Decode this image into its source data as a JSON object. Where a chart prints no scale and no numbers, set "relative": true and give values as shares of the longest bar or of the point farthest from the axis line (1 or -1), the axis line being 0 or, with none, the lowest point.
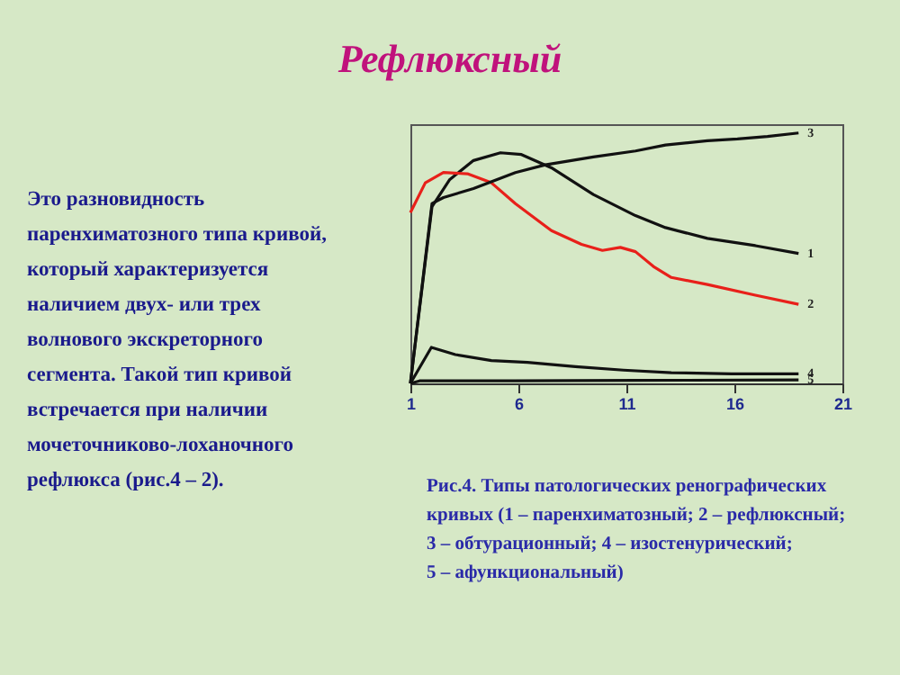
{
  "chart_data": {
    "type": "line",
    "title": "Рефлюксный",
    "relative": true,
    "xlim": [
      1,
      21
    ],
    "xticks": [
      1,
      6,
      11,
      16,
      21
    ],
    "grid": false,
    "legend": false,
    "marker": "none",
    "line_style": "solid",
    "series": [
      {
        "name": "1",
        "color": "#111111",
        "x": [
          1,
          2.0,
          2.81,
          3.92,
          5.17,
          6.14,
          7.53,
          9.47,
          11.42,
          12.81,
          14.75,
          16.97,
          18.97
        ],
        "values": [
          0,
          0.706,
          0.813,
          0.89,
          0.921,
          0.914,
          0.861,
          0.754,
          0.67,
          0.622,
          0.579,
          0.55,
          0.519
        ]
      },
      {
        "name": "2",
        "color": "#e8201a",
        "x": [
          1,
          1.69,
          2.53,
          3.64,
          4.75,
          5.86,
          7.53,
          8.92,
          9.89,
          10.72,
          11.42,
          12.25,
          13.08,
          14.75,
          16.97,
          18.97
        ],
        "values": [
          0.682,
          0.801,
          0.842,
          0.837,
          0.801,
          0.718,
          0.61,
          0.555,
          0.531,
          0.543,
          0.526,
          0.467,
          0.423,
          0.395,
          0.352,
          0.316
        ]
      },
      {
        "name": "3",
        "color": "#111111",
        "x": [
          1,
          2.0,
          2.53,
          3.92,
          5.86,
          7.25,
          9.47,
          11.42,
          12.81,
          14.75,
          16.14,
          17.53,
          18.97
        ],
        "values": [
          0,
          0.718,
          0.742,
          0.778,
          0.842,
          0.873,
          0.904,
          0.928,
          0.952,
          0.969,
          0.976,
          0.986,
          1
        ]
      },
      {
        "name": "4",
        "color": "#111111",
        "x": [
          1,
          1.97,
          3.08,
          4.75,
          6.42,
          8.64,
          10.86,
          13.08,
          15.86,
          18.97
        ],
        "values": [
          0,
          0.144,
          0.115,
          0.091,
          0.084,
          0.067,
          0.053,
          0.043,
          0.038,
          0.038
        ]
      },
      {
        "name": "5",
        "color": "#111111",
        "x": [
          1,
          1.42,
          5.86,
          11.42,
          18.97
        ],
        "values": [
          0,
          0.01,
          0.01,
          0.012,
          0.014
        ]
      }
    ],
    "annotations": [
      "Это разновидность паренхиматозного типа кривой, который характеризуется наличием двух- или трех волнового экскреторного сегмента. Такой тип кривой встречается при наличии мочеточниково-лоханочного рефлюкса (рис.4 – 2).",
      "Рис.4. Типы патологических ренографических кривых (1 – паренхиматозный; 2 – рефлюксный; 3 – обтурационный; 4 – изостенурический; 5 – афункциональный)"
    ]
  }
}
